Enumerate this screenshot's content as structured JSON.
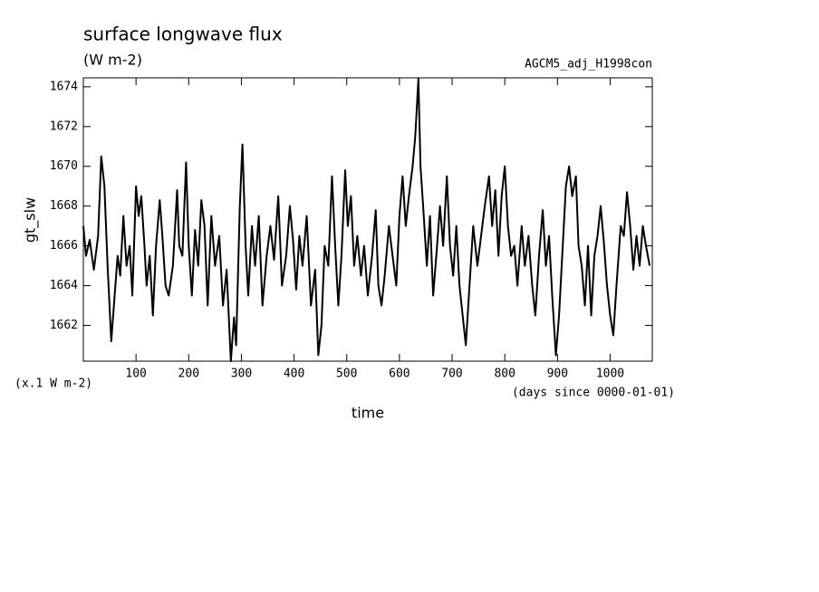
{
  "chart_data": {
    "type": "line",
    "title": "surface longwave flux",
    "subtitle": "(W m-2)",
    "annotation": "AGCM5_adj_H1998con",
    "y_label": "gt_slw",
    "y_unit": "(x.1 W m-2)",
    "x_label": "time",
    "x_unit": "(days since 0000-01-01)",
    "x": [
      0,
      5,
      12,
      20,
      28,
      34,
      40,
      46,
      53,
      58,
      65,
      70,
      76,
      82,
      88,
      93,
      100,
      105,
      110,
      116,
      120,
      126,
      132,
      138,
      145,
      150,
      156,
      162,
      170,
      178,
      182,
      188,
      195,
      200,
      206,
      212,
      218,
      224,
      230,
      236,
      243,
      250,
      258,
      265,
      272,
      280,
      286,
      290,
      297,
      302,
      308,
      313,
      320,
      326,
      333,
      340,
      348,
      355,
      362,
      370,
      377,
      385,
      392,
      398,
      404,
      410,
      416,
      424,
      432,
      440,
      446,
      452,
      458,
      465,
      472,
      478,
      484,
      490,
      497,
      502,
      508,
      514,
      520,
      527,
      533,
      540,
      548,
      555,
      560,
      566,
      572,
      580,
      587,
      594,
      600,
      606,
      612,
      618,
      625,
      630,
      636,
      640,
      645,
      652,
      658,
      664,
      670,
      677,
      683,
      690,
      696,
      702,
      708,
      714,
      720,
      726,
      733,
      740,
      748,
      755,
      762,
      770,
      776,
      782,
      788,
      794,
      800,
      806,
      812,
      818,
      824,
      832,
      838,
      845,
      852,
      858,
      865,
      872,
      878,
      884,
      890,
      897,
      903,
      910,
      916,
      922,
      928,
      935,
      940,
      946,
      952,
      958,
      964,
      970,
      976,
      982,
      988,
      994,
      1000,
      1006,
      1012,
      1020,
      1026,
      1032,
      1038,
      1044,
      1050,
      1056,
      1062,
      1068,
      1075
    ],
    "series": [
      {
        "color": "#000000",
        "values": [
          1667,
          1665.5,
          1666.3,
          1664.8,
          1666.5,
          1670.5,
          1669,
          1665,
          1661.2,
          1663,
          1665.5,
          1664.5,
          1667.5,
          1665,
          1666,
          1663.5,
          1669,
          1667.5,
          1668.5,
          1666,
          1664,
          1665.5,
          1662.5,
          1666,
          1668.3,
          1666.5,
          1664,
          1663.5,
          1665,
          1668.8,
          1666,
          1665.5,
          1670.2,
          1666,
          1663.5,
          1666.8,
          1665,
          1668.3,
          1667,
          1663,
          1667.5,
          1665,
          1666.5,
          1663,
          1664.8,
          1660.2,
          1662.4,
          1661,
          1668,
          1671.1,
          1666,
          1663.5,
          1667,
          1665,
          1667.5,
          1663,
          1665.5,
          1667,
          1665.3,
          1668.5,
          1664,
          1665.5,
          1668,
          1666.3,
          1663.8,
          1666.5,
          1665,
          1667.5,
          1663,
          1664.8,
          1660.5,
          1662,
          1666,
          1665,
          1669.5,
          1666,
          1663,
          1665.5,
          1669.8,
          1667,
          1668.5,
          1665,
          1666.5,
          1664.5,
          1666,
          1663.5,
          1665.5,
          1667.8,
          1664,
          1663,
          1664.5,
          1667,
          1665.5,
          1664,
          1667.5,
          1669.5,
          1667,
          1668.5,
          1670,
          1671.5,
          1674.4,
          1670,
          1668,
          1665,
          1667.5,
          1663.5,
          1665.5,
          1668,
          1666,
          1669.5,
          1666,
          1664.5,
          1667,
          1664,
          1662.5,
          1661,
          1664,
          1667,
          1665,
          1666.5,
          1668,
          1669.5,
          1667,
          1668.8,
          1665.5,
          1668.5,
          1670,
          1667,
          1665.5,
          1666,
          1664,
          1667,
          1665,
          1666.5,
          1664,
          1662.5,
          1665.5,
          1667.8,
          1665,
          1666.5,
          1663.5,
          1660.5,
          1662.5,
          1666,
          1669,
          1670,
          1668.5,
          1669.5,
          1666,
          1665,
          1663,
          1666,
          1662.5,
          1665.5,
          1666.5,
          1668,
          1666.2,
          1664,
          1662.5,
          1661.5,
          1664,
          1667,
          1666.5,
          1668.7,
          1667,
          1664.8,
          1666.5,
          1665,
          1667,
          1666,
          1665
        ]
      }
    ],
    "xlim": [
      0,
      1080
    ],
    "xticks": [
      100,
      200,
      300,
      400,
      500,
      600,
      700,
      800,
      900,
      1000
    ],
    "ylim": [
      1660.2,
      1674.45
    ],
    "yticks": [
      1662,
      1664,
      1666,
      1668,
      1670,
      1672,
      1674
    ],
    "grid": false
  }
}
